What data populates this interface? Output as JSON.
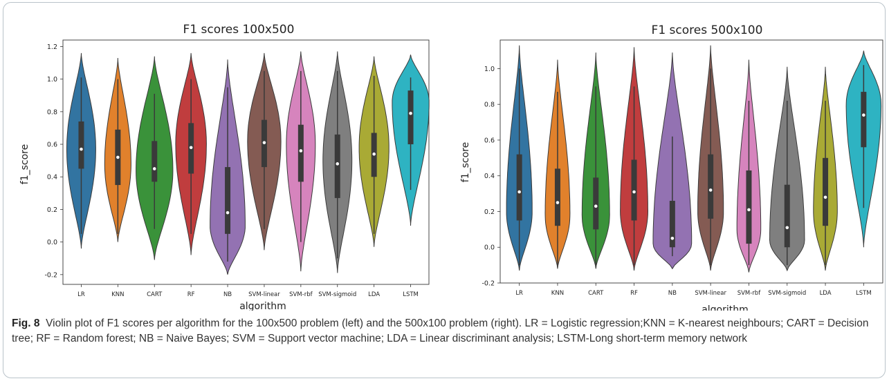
{
  "chart_data": [
    {
      "type": "violin",
      "title": "F1 scores 100x500",
      "xlabel": "algorithm",
      "ylabel": "f1_score",
      "ylim": [
        -0.26,
        1.24
      ],
      "yticks": [
        -0.2,
        0.0,
        0.2,
        0.4,
        0.6,
        0.8,
        1.0,
        1.2
      ],
      "ytick_labels": [
        "-0.2",
        "0.0",
        "0.2",
        "0.4",
        "0.6",
        "0.8",
        "1.0",
        "1.2"
      ],
      "categories": [
        "LR",
        "KNN",
        "CART",
        "RF",
        "NB",
        "SVM-linear",
        "SVM-rbf",
        "SVM-sigmoid",
        "LDA",
        "LSTM"
      ],
      "category_labels": [
        "LR",
        "KNN",
        "CART",
        "RF",
        "NB",
        "SVM-linear",
        "SVM-rbf",
        "SVM-sigmoid",
        "LDA",
        "LSTM"
      ],
      "series": [
        {
          "min": -0.04,
          "max": 1.16,
          "q1": 0.45,
          "median": 0.57,
          "q3": 0.74,
          "whisker_low": 0.05,
          "whisker_high": 1.01,
          "mode": 0.57,
          "width": 0.33
        },
        {
          "min": 0.0,
          "max": 1.13,
          "q1": 0.35,
          "median": 0.52,
          "q3": 0.69,
          "whisker_low": 0.05,
          "whisker_high": 1.0,
          "mode": 0.48,
          "width": 0.3
        },
        {
          "min": -0.11,
          "max": 1.14,
          "q1": 0.37,
          "median": 0.45,
          "q3": 0.62,
          "whisker_low": 0.08,
          "whisker_high": 0.91,
          "mode": 0.44,
          "width": 0.42
        },
        {
          "min": -0.08,
          "max": 1.16,
          "q1": 0.42,
          "median": 0.58,
          "q3": 0.73,
          "whisker_low": 0.05,
          "whisker_high": 1.0,
          "mode": 0.6,
          "width": 0.35
        },
        {
          "min": -0.2,
          "max": 1.12,
          "q1": 0.05,
          "median": 0.18,
          "q3": 0.46,
          "whisker_low": -0.12,
          "whisker_high": 0.95,
          "mode": 0.1,
          "width": 0.4
        },
        {
          "min": -0.05,
          "max": 1.16,
          "q1": 0.46,
          "median": 0.61,
          "q3": 0.75,
          "whisker_low": 0.08,
          "whisker_high": 1.05,
          "mode": 0.62,
          "width": 0.38
        },
        {
          "min": -0.18,
          "max": 1.17,
          "q1": 0.37,
          "median": 0.56,
          "q3": 0.72,
          "whisker_low": 0.0,
          "whisker_high": 1.05,
          "mode": 0.6,
          "width": 0.33
        },
        {
          "min": -0.19,
          "max": 1.17,
          "q1": 0.27,
          "median": 0.48,
          "q3": 0.66,
          "whisker_low": -0.1,
          "whisker_high": 1.05,
          "mode": 0.5,
          "width": 0.33
        },
        {
          "min": -0.03,
          "max": 1.14,
          "q1": 0.4,
          "median": 0.54,
          "q3": 0.67,
          "whisker_low": 0.05,
          "whisker_high": 1.02,
          "mode": 0.58,
          "width": 0.34
        },
        {
          "min": 0.1,
          "max": 1.15,
          "q1": 0.6,
          "median": 0.79,
          "q3": 0.93,
          "whisker_low": 0.32,
          "whisker_high": 1.01,
          "mode": 0.86,
          "width": 0.42
        }
      ],
      "colors": [
        "#3274a1",
        "#e1812c",
        "#3a923a",
        "#c03d3e",
        "#9372b2",
        "#845b53",
        "#d684bd",
        "#7f7f7f",
        "#a9aa35",
        "#2eb3c2"
      ]
    },
    {
      "type": "violin",
      "title": "F1 scores 500x100",
      "xlabel": "algorithm",
      "ylabel": "f1_score",
      "ylim": [
        -0.2,
        1.16
      ],
      "yticks": [
        -0.2,
        0.0,
        0.2,
        0.4,
        0.6,
        0.8,
        1.0
      ],
      "ytick_labels": [
        "-0.2",
        "0.0",
        "0.2",
        "0.4",
        "0.6",
        "0.8",
        "1.0"
      ],
      "categories": [
        "LR",
        "KNN",
        "CART",
        "RF",
        "NB",
        "SVM-linear",
        "SVM-rbf",
        "SVM-sigmoid",
        "LDA",
        "LSTM"
      ],
      "category_labels": [
        "LR",
        "KNN",
        "CART",
        "RF",
        "NB",
        "SVM-linear",
        "SVM-rbf",
        "SVM-sigmoid",
        "LDA",
        "LSTM"
      ],
      "series": [
        {
          "min": -0.13,
          "max": 1.13,
          "q1": 0.15,
          "median": 0.31,
          "q3": 0.52,
          "whisker_low": -0.1,
          "whisker_high": 1.0,
          "mode": 0.2,
          "width": 0.28
        },
        {
          "min": -0.12,
          "max": 1.05,
          "q1": 0.12,
          "median": 0.25,
          "q3": 0.44,
          "whisker_low": -0.1,
          "whisker_high": 0.87,
          "mode": 0.18,
          "width": 0.27
        },
        {
          "min": -0.12,
          "max": 1.09,
          "q1": 0.1,
          "median": 0.23,
          "q3": 0.39,
          "whisker_low": -0.1,
          "whisker_high": 0.9,
          "mode": 0.18,
          "width": 0.3
        },
        {
          "min": -0.13,
          "max": 1.12,
          "q1": 0.15,
          "median": 0.31,
          "q3": 0.49,
          "whisker_low": -0.1,
          "whisker_high": 0.9,
          "mode": 0.2,
          "width": 0.3
        },
        {
          "min": -0.12,
          "max": 1.09,
          "q1": 0.0,
          "median": 0.05,
          "q3": 0.26,
          "whisker_low": -0.05,
          "whisker_high": 0.62,
          "mode": 0.02,
          "width": 0.42
        },
        {
          "min": -0.13,
          "max": 1.13,
          "q1": 0.16,
          "median": 0.32,
          "q3": 0.52,
          "whisker_low": -0.1,
          "whisker_high": 1.0,
          "mode": 0.2,
          "width": 0.28
        },
        {
          "min": -0.14,
          "max": 1.05,
          "q1": 0.02,
          "median": 0.21,
          "q3": 0.43,
          "whisker_low": -0.1,
          "whisker_high": 0.82,
          "mode": 0.1,
          "width": 0.26
        },
        {
          "min": -0.13,
          "max": 1.01,
          "q1": 0.0,
          "median": 0.11,
          "q3": 0.35,
          "whisker_low": -0.1,
          "whisker_high": 0.82,
          "mode": 0.04,
          "width": 0.38
        },
        {
          "min": -0.13,
          "max": 1.01,
          "q1": 0.12,
          "median": 0.28,
          "q3": 0.5,
          "whisker_low": -0.1,
          "whisker_high": 0.82,
          "mode": 0.2,
          "width": 0.26
        },
        {
          "min": 0.0,
          "max": 1.1,
          "q1": 0.56,
          "median": 0.74,
          "q3": 0.87,
          "whisker_low": 0.22,
          "whisker_high": 1.02,
          "mode": 0.8,
          "width": 0.38
        }
      ],
      "colors": [
        "#3274a1",
        "#e1812c",
        "#3a923a",
        "#c03d3e",
        "#9372b2",
        "#845b53",
        "#d684bd",
        "#7f7f7f",
        "#a9aa35",
        "#2eb3c2"
      ]
    }
  ],
  "caption": {
    "label": "Fig. 8",
    "text": "Violin plot of F1 scores per algorithm for the 100x500 problem (left) and the 500x100 problem (right). LR = Logistic regression;KNN = K-nearest neighbours; CART = Decision tree; RF = Random forest; NB = Naive Bayes; SVM = Support vector machine; LDA = Linear discriminant analysis; LSTM-Long short-term memory network"
  }
}
